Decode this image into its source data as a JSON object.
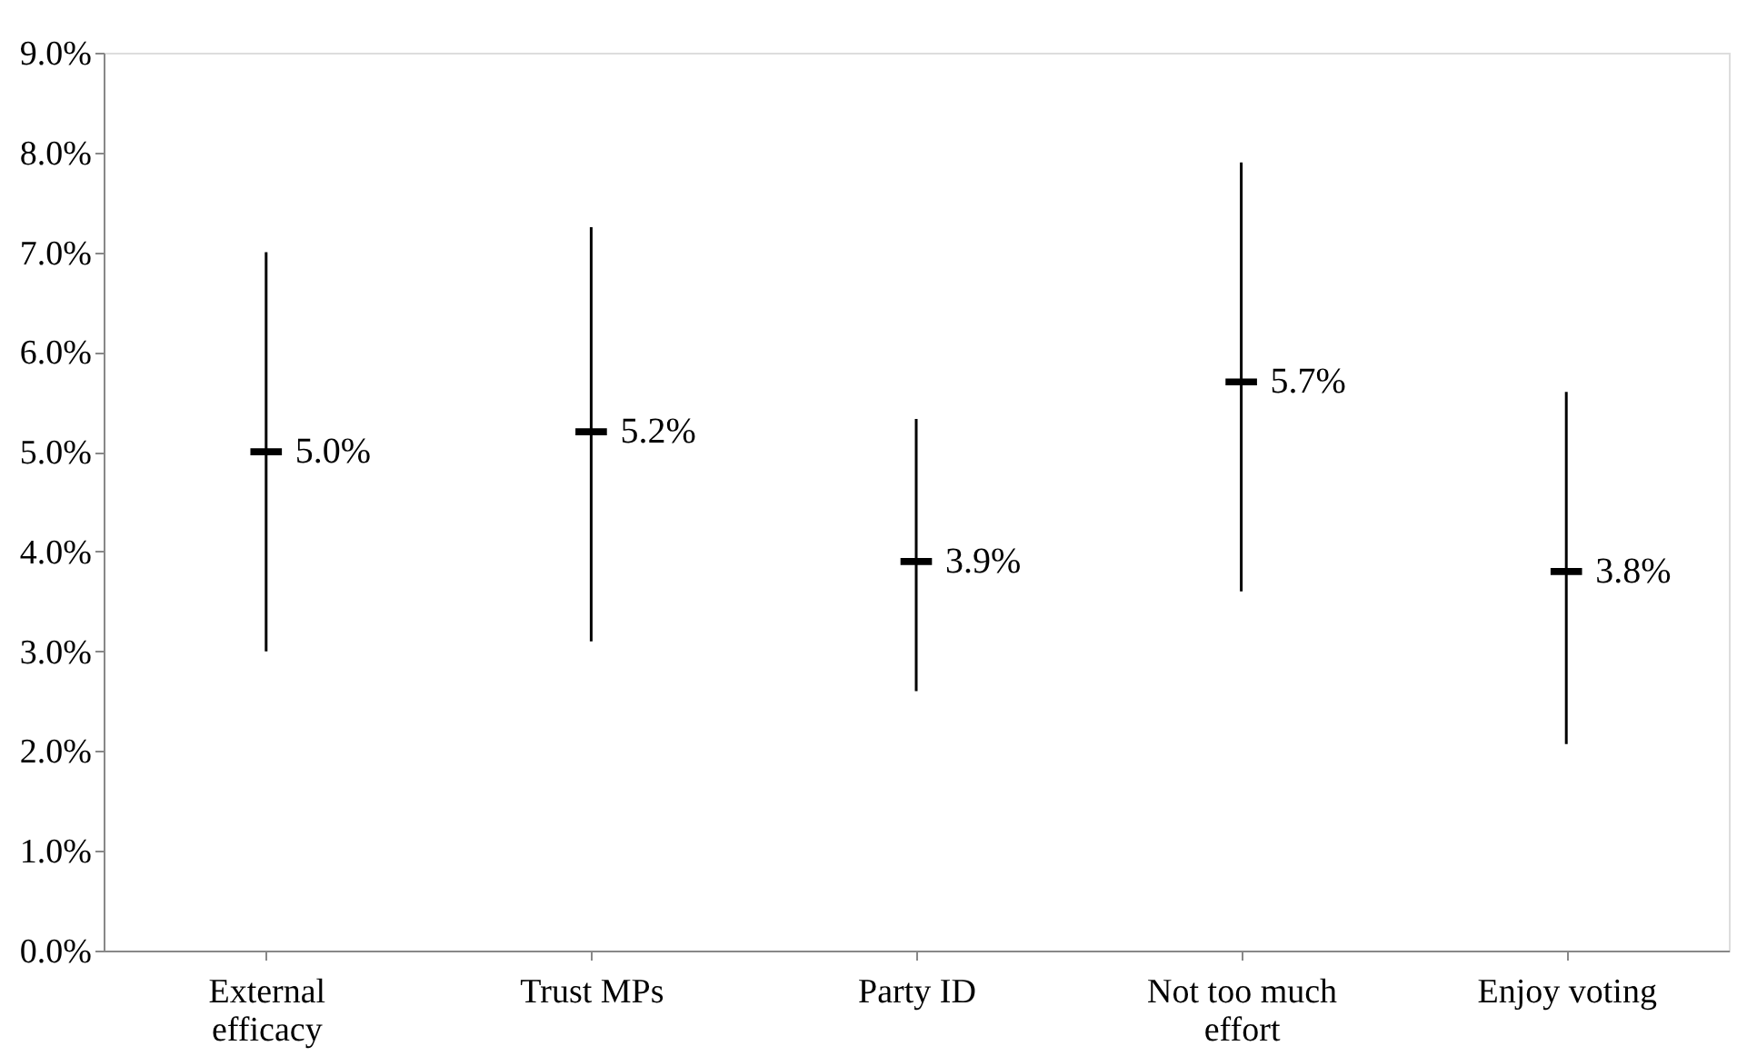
{
  "chart_data": {
    "type": "scatter",
    "categories": [
      "External efficacy",
      "Trust MPs",
      "Party ID",
      "Not too much effort",
      "Enjoy voting"
    ],
    "series": [
      {
        "color": "#000000",
        "values": [
          5.0,
          5.2,
          3.9,
          5.7,
          3.8
        ],
        "errors": [
          [
            3.0,
            7.0
          ],
          [
            3.1,
            7.25
          ],
          [
            2.6,
            5.33
          ],
          [
            3.6,
            7.9
          ],
          [
            2.07,
            5.6
          ]
        ],
        "value_labels": [
          "5.0%",
          "5.2%",
          "3.9%",
          "5.7%",
          "3.8%"
        ]
      }
    ],
    "ylim": [
      0,
      9
    ],
    "yticks": [
      {
        "value": 0,
        "label": "0.0%"
      },
      {
        "value": 1,
        "label": "1.0%"
      },
      {
        "value": 2,
        "label": "2.0%"
      },
      {
        "value": 3,
        "label": "3.0%"
      },
      {
        "value": 4,
        "label": "4.0%"
      },
      {
        "value": 5,
        "label": "5.0%"
      },
      {
        "value": 6,
        "label": "6.0%"
      },
      {
        "value": 7,
        "label": "7.0%"
      },
      {
        "value": 8,
        "label": "8.0%"
      },
      {
        "value": 9,
        "label": "9.0%"
      }
    ],
    "grid": false
  }
}
